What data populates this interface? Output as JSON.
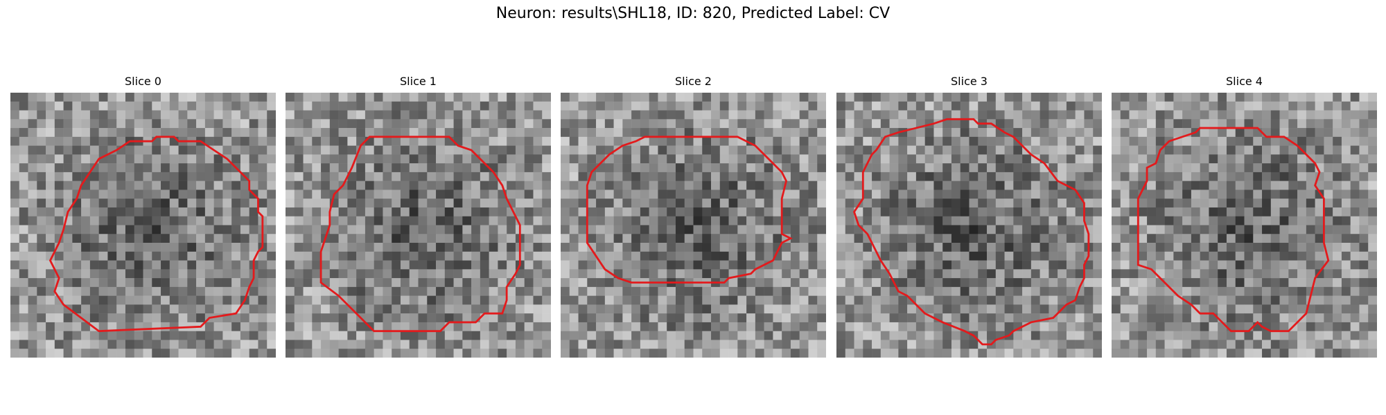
{
  "figure": {
    "title": "Neuron: results\\SHL18, ID: 820, Predicted Label: CV"
  },
  "contour_color": "#e31a1c",
  "panels": [
    {
      "title": "Slice 0"
    },
    {
      "title": "Slice 1"
    },
    {
      "title": "Slice 2"
    },
    {
      "title": "Slice 3"
    },
    {
      "title": "Slice 4"
    }
  ]
}
